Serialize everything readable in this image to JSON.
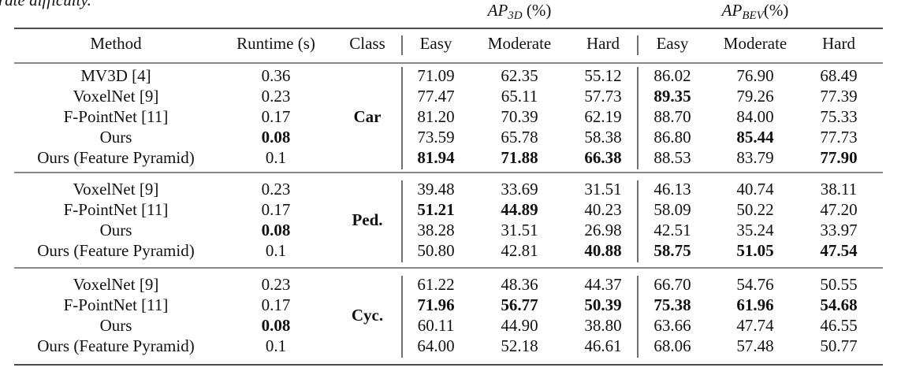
{
  "caption_fragment": "rate difficulty.",
  "header": {
    "groups": [
      {
        "label": "AP",
        "sub": "3D",
        "unit": " (%)"
      },
      {
        "label": "AP",
        "sub": "BEV",
        "unit": "(%)"
      }
    ],
    "columns": [
      "Method",
      "Runtime (s)",
      "Class",
      "Easy",
      "Moderate",
      "Hard",
      "Easy",
      "Moderate",
      "Hard"
    ]
  },
  "table": {
    "groups": [
      {
        "class": "Car",
        "rows": [
          [
            "MV3D [4]",
            "0.36",
            "71.09",
            "62.35",
            "55.12",
            "86.02",
            "76.90",
            "68.49"
          ],
          [
            "VoxelNet [9]",
            "0.23",
            "77.47",
            "65.11",
            "57.73",
            "89.35",
            "79.26",
            "77.39"
          ],
          [
            "F-PointNet [11]",
            "0.17",
            "81.20",
            "70.39",
            "62.19",
            "88.70",
            "84.00",
            "75.33"
          ],
          [
            "Ours",
            "0.08",
            "73.59",
            "65.78",
            "58.38",
            "86.80",
            "85.44",
            "77.73"
          ],
          [
            "Ours (Feature Pyramid)",
            "0.1",
            "81.94",
            "71.88",
            "66.38",
            "88.53",
            "83.79",
            "77.90"
          ]
        ],
        "bold": [
          [],
          [
            5
          ],
          [],
          [
            1,
            6
          ],
          [
            2,
            3,
            4,
            7
          ]
        ]
      },
      {
        "class": "Ped.",
        "rows": [
          [
            "VoxelNet [9]",
            "0.23",
            "39.48",
            "33.69",
            "31.51",
            "46.13",
            "40.74",
            "38.11"
          ],
          [
            "F-PointNet [11]",
            "0.17",
            "51.21",
            "44.89",
            "40.23",
            "58.09",
            "50.22",
            "47.20"
          ],
          [
            "Ours",
            "0.08",
            "38.28",
            "31.51",
            "26.98",
            "42.51",
            "35.24",
            "33.97"
          ],
          [
            "Ours (Feature Pyramid)",
            "0.1",
            "50.80",
            "42.81",
            "40.88",
            "58.75",
            "51.05",
            "47.54"
          ]
        ],
        "bold": [
          [],
          [
            2,
            3
          ],
          [
            1
          ],
          [
            4,
            5,
            6,
            7
          ]
        ]
      },
      {
        "class": "Cyc.",
        "rows": [
          [
            "VoxelNet [9]",
            "0.23",
            "61.22",
            "48.36",
            "44.37",
            "66.70",
            "54.76",
            "50.55"
          ],
          [
            "F-PointNet [11]",
            "0.17",
            "71.96",
            "56.77",
            "50.39",
            "75.38",
            "61.96",
            "54.68"
          ],
          [
            "Ours",
            "0.08",
            "60.11",
            "44.90",
            "38.80",
            "63.66",
            "47.74",
            "46.55"
          ],
          [
            "Ours (Feature Pyramid)",
            "0.1",
            "64.00",
            "52.18",
            "46.61",
            "68.06",
            "57.48",
            "50.77"
          ]
        ],
        "bold": [
          [],
          [
            2,
            3,
            4,
            5,
            6,
            7
          ],
          [
            1
          ],
          []
        ]
      }
    ]
  }
}
